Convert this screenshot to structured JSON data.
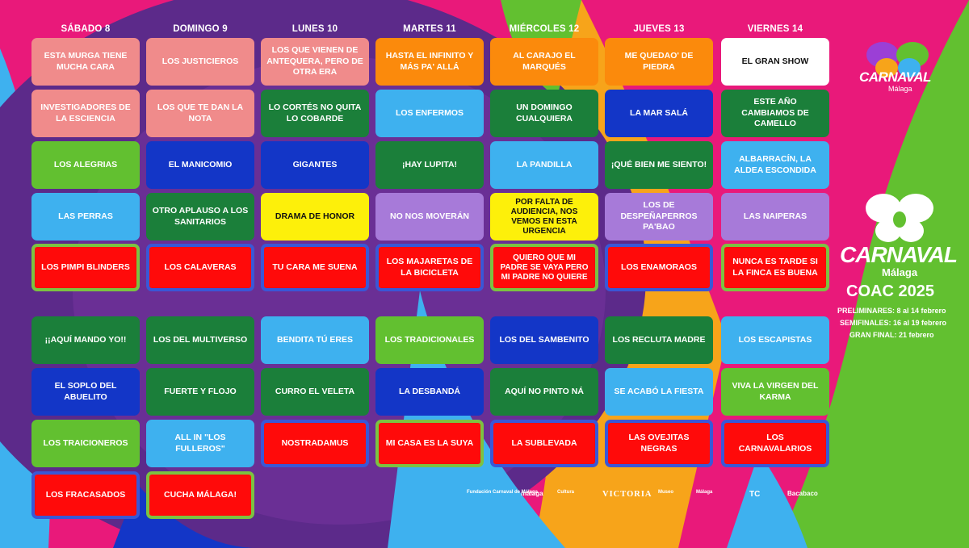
{
  "days": [
    "SÁBADO 8",
    "DOMINGO 9",
    "LUNES 10",
    "MARTES 11",
    "MIÉRCOLES 12",
    "JUEVES 13",
    "VIERNES 14"
  ],
  "rows": [
    [
      "ESTA MURGA TIENE MUCHA CARA",
      "LOS JUSTICIEROS",
      "LOS QUE VIENEN DE ANTEQUERA, PERO DE OTRA ERA",
      "HASTA EL INFINITO Y MÁS PA' ALLÁ",
      "AL CARAJO EL MARQUÉS",
      "ME QUEDAO' DE PIEDRA",
      "EL GRAN SHOW"
    ],
    [
      "INVESTIGADORES DE LA ESCIENCIA",
      "LOS QUE TE DAN LA NOTA",
      "LO CORTÉS NO QUITA LO COBARDE",
      "LOS ENFERMOS",
      "UN DOMINGO CUALQUIERA",
      "LA MAR SALÁ",
      "ESTE AÑO CAMBIAMOS DE CAMELLO"
    ],
    [
      "LOS ALEGRIAS",
      "EL MANICOMIO",
      "GIGANTES",
      "¡HAY LUPITA!",
      "LA PANDILLA",
      "¡QUÉ BIEN ME SIENTO!",
      "ALBARRACÍN, LA ALDEA ESCONDIDA"
    ],
    [
      "LAS PERRAS",
      "OTRO APLAUSO A LOS SANITARIOS",
      "DRAMA DE HONOR",
      "NO NOS MOVERÁN",
      "POR FALTA DE AUDIENCIA, NOS VEMOS EN ESTA URGENCIA",
      "LOS DE DESPEÑAPERROS PA'BAO",
      "LAS NAIPERAS"
    ],
    [
      "LOS PIMPI BLINDERS",
      "LOS CALAVERAS",
      "TU CARA ME SUENA",
      "LOS MAJARETAS DE LA BICICLETA",
      "QUIERO QUE MI PADRE SE VAYA PERO MI PADRE NO QUIERE",
      "LOS ENAMORAOS",
      "NUNCA ES TARDE SI LA FINCA ES BUENA"
    ],
    [
      "¡¡AQUÍ MANDO YO!!",
      "LOS DEL MULTIVERSO",
      "BENDITA TÚ ERES",
      "LOS TRADICIONALES",
      "LOS DEL SAMBENITO",
      "LOS RECLUTA MADRE",
      "LOS ESCAPISTAS"
    ],
    [
      "EL SOPLO DEL ABUELITO",
      "FUERTE Y FLOJO",
      "CURRO EL VELETA",
      "LA DESBANDÁ",
      "AQUÍ NO PINTO NÁ",
      "SE ACABÓ LA FIESTA",
      "VIVA LA VIRGEN DEL KARMA"
    ],
    [
      "LOS TRAICIONEROS",
      "ALL IN \"LOS FULLEROS\"",
      "NOSTRADAMUS",
      "MI CASA ES LA SUYA",
      "LA SUBLEVADA",
      "LAS OVEJITAS NEGRAS",
      "LOS CARNAVALARIOS"
    ],
    [
      "LOS FRACASADOS",
      "CUCHA MÁLAGA!"
    ]
  ],
  "logo_small": {
    "title": "CARNAVAL",
    "subtitle": "Málaga"
  },
  "logo_big": {
    "title": "CARNAVAL",
    "subtitle": "Málaga",
    "event": "COAC 2025"
  },
  "info": {
    "preliminares": "PRELIMINARES: 8 al 14 febrero",
    "semifinales": "SEMIFINALES: 16 al 19 febrero",
    "gran_final": "GRAN FINAL: 21 febrero"
  },
  "sponsors": [
    "Fundación Carnaval de Málaga",
    "málaga",
    "Cultura",
    "VICTORIA",
    "Museo",
    "Málaga",
    "TC",
    "Bacabaco"
  ],
  "colors": {
    "salmon": "#f08b8b",
    "dark_green": "#1b7f3a",
    "light_green": "#62c030",
    "sky_blue": "#3eb1ef",
    "navy": "#1336c7",
    "orange": "#fb8a0c",
    "lavender": "#a77ad9",
    "yellow": "#fdf00a",
    "white": "#ffffff",
    "red": "#ff0a0a",
    "background_pink": "#e9197a",
    "background_purple": "#5c2a8a"
  }
}
